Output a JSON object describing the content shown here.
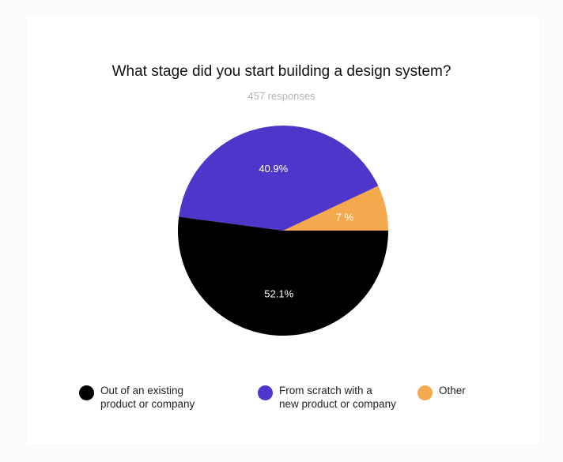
{
  "chart_data": {
    "type": "pie",
    "title": "What stage did you start building a design system?",
    "subtitle": "457 responses",
    "slices": [
      {
        "label": "Out of an existing\nproduct or company",
        "value": 52.1,
        "display": "52.1%",
        "color": "#000000"
      },
      {
        "label": "From scratch with a\nnew product or company",
        "value": 40.9,
        "display": "40.9%",
        "color": "#4f35c9"
      },
      {
        "label": "Other",
        "value": 7,
        "display": "7 %",
        "color": "#f4a94e"
      }
    ],
    "legend_position": "bottom"
  }
}
